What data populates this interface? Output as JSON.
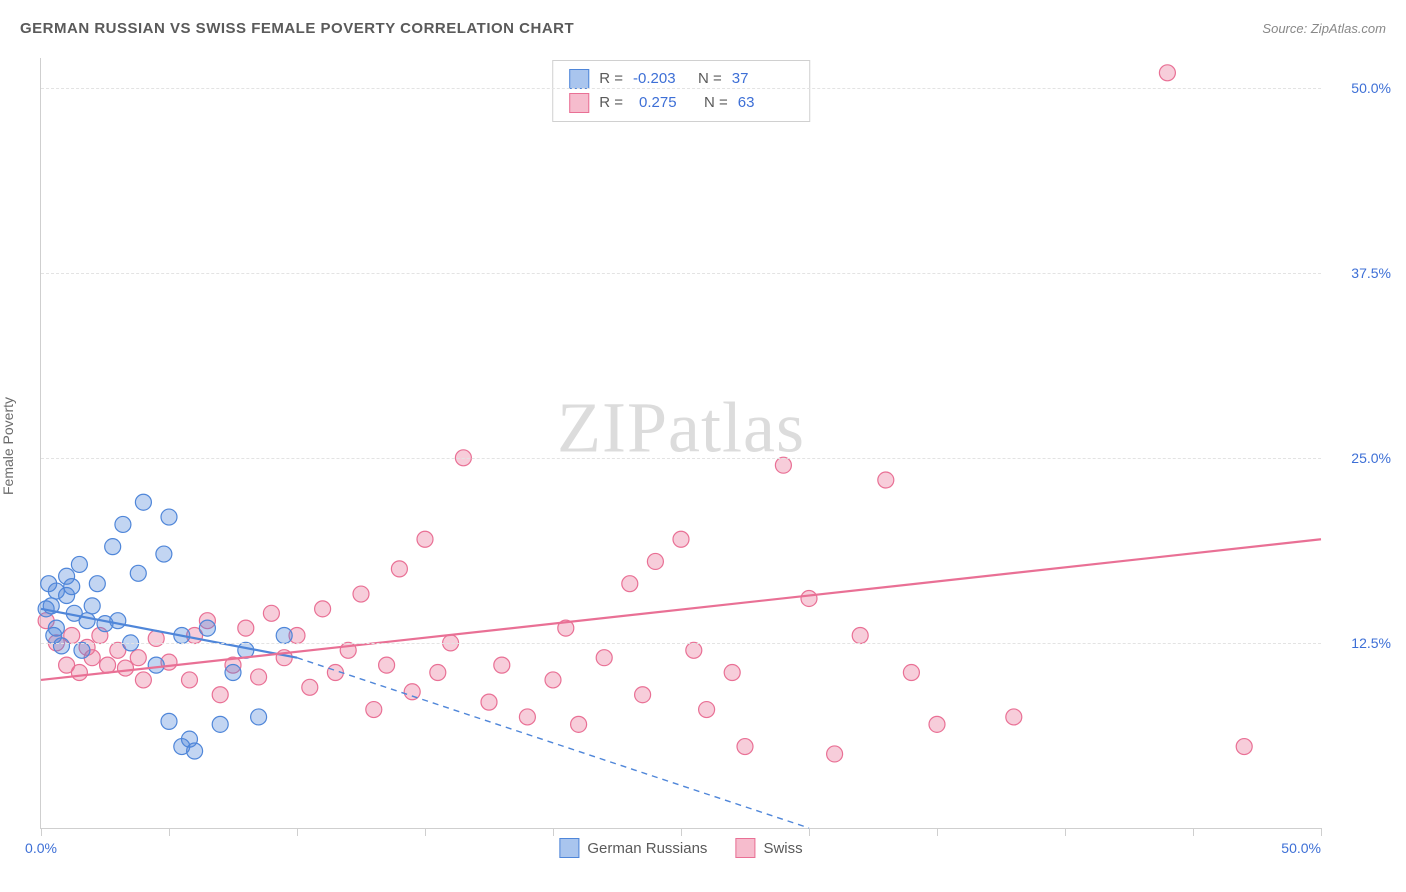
{
  "header": {
    "title": "GERMAN RUSSIAN VS SWISS FEMALE POVERTY CORRELATION CHART",
    "source_label": "Source:",
    "source_name": "ZipAtlas.com"
  },
  "watermark": {
    "zip": "ZIP",
    "atlas": "atlas"
  },
  "chart": {
    "type": "scatter",
    "ylabel": "Female Poverty",
    "xlim": [
      0,
      50
    ],
    "ylim": [
      0,
      52
    ],
    "xticks": [
      0,
      5,
      10,
      15,
      20,
      25,
      30,
      35,
      40,
      45,
      50
    ],
    "xtick_labels": {
      "0": "0.0%",
      "50": "50.0%"
    },
    "yticks": [
      12.5,
      25.0,
      37.5,
      50.0
    ],
    "ytick_labels": [
      "12.5%",
      "25.0%",
      "37.5%",
      "50.0%"
    ],
    "grid_color": "#e3e3e3",
    "axis_color": "#cfcfcf",
    "background_color": "#ffffff",
    "tick_label_color": "#3d6fd6",
    "marker_radius": 8,
    "marker_fill_opacity": 0.35,
    "marker_stroke_width": 1.2,
    "line_width": 2.2,
    "series": [
      {
        "name": "German Russians",
        "color": "#4f86d9",
        "fill": "#a9c5ee",
        "R": "-0.203",
        "N": "37",
        "points": [
          [
            0.2,
            14.8
          ],
          [
            0.3,
            16.5
          ],
          [
            0.4,
            15.0
          ],
          [
            0.5,
            13.0
          ],
          [
            0.6,
            16.0
          ],
          [
            0.6,
            13.5
          ],
          [
            0.8,
            12.3
          ],
          [
            1.0,
            15.7
          ],
          [
            1.0,
            17.0
          ],
          [
            1.2,
            16.3
          ],
          [
            1.3,
            14.5
          ],
          [
            1.5,
            17.8
          ],
          [
            1.6,
            12.0
          ],
          [
            1.8,
            14.0
          ],
          [
            2.0,
            15.0
          ],
          [
            2.2,
            16.5
          ],
          [
            2.5,
            13.8
          ],
          [
            2.8,
            19.0
          ],
          [
            3.0,
            14.0
          ],
          [
            3.2,
            20.5
          ],
          [
            3.5,
            12.5
          ],
          [
            3.8,
            17.2
          ],
          [
            4.0,
            22.0
          ],
          [
            4.5,
            11.0
          ],
          [
            4.8,
            18.5
          ],
          [
            5.0,
            21.0
          ],
          [
            5.5,
            13.0
          ],
          [
            5.8,
            6.0
          ],
          [
            6.0,
            5.2
          ],
          [
            5.0,
            7.2
          ],
          [
            5.5,
            5.5
          ],
          [
            6.5,
            13.5
          ],
          [
            7.0,
            7.0
          ],
          [
            7.5,
            10.5
          ],
          [
            8.0,
            12.0
          ],
          [
            8.5,
            7.5
          ],
          [
            9.5,
            13.0
          ]
        ],
        "trend": {
          "x1": 0,
          "y1": 14.8,
          "x2": 10,
          "y2": 11.5,
          "dash_from_x": 10,
          "x3": 30,
          "y3": 0
        }
      },
      {
        "name": "Swiss",
        "color": "#e97095",
        "fill": "#f6bccd",
        "R": "0.275",
        "N": "63",
        "points": [
          [
            0.2,
            14.0
          ],
          [
            0.6,
            12.5
          ],
          [
            1.0,
            11.0
          ],
          [
            1.2,
            13.0
          ],
          [
            1.5,
            10.5
          ],
          [
            1.8,
            12.2
          ],
          [
            2.0,
            11.5
          ],
          [
            2.3,
            13.0
          ],
          [
            2.6,
            11.0
          ],
          [
            3.0,
            12.0
          ],
          [
            3.3,
            10.8
          ],
          [
            3.8,
            11.5
          ],
          [
            4.0,
            10.0
          ],
          [
            4.5,
            12.8
          ],
          [
            5.0,
            11.2
          ],
          [
            5.8,
            10.0
          ],
          [
            6.0,
            13.0
          ],
          [
            6.5,
            14.0
          ],
          [
            7.0,
            9.0
          ],
          [
            7.5,
            11.0
          ],
          [
            8.0,
            13.5
          ],
          [
            8.5,
            10.2
          ],
          [
            9.0,
            14.5
          ],
          [
            9.5,
            11.5
          ],
          [
            10.0,
            13.0
          ],
          [
            10.5,
            9.5
          ],
          [
            11.0,
            14.8
          ],
          [
            11.5,
            10.5
          ],
          [
            12.0,
            12.0
          ],
          [
            12.5,
            15.8
          ],
          [
            13.0,
            8.0
          ],
          [
            13.5,
            11.0
          ],
          [
            14.0,
            17.5
          ],
          [
            14.5,
            9.2
          ],
          [
            15.0,
            19.5
          ],
          [
            15.5,
            10.5
          ],
          [
            16.0,
            12.5
          ],
          [
            16.5,
            25.0
          ],
          [
            17.5,
            8.5
          ],
          [
            18.0,
            11.0
          ],
          [
            19.0,
            7.5
          ],
          [
            20.0,
            10.0
          ],
          [
            20.5,
            13.5
          ],
          [
            21.0,
            7.0
          ],
          [
            22.0,
            11.5
          ],
          [
            23.0,
            16.5
          ],
          [
            23.5,
            9.0
          ],
          [
            24.0,
            18.0
          ],
          [
            25.0,
            19.5
          ],
          [
            25.5,
            12.0
          ],
          [
            26.0,
            8.0
          ],
          [
            27.0,
            10.5
          ],
          [
            27.5,
            5.5
          ],
          [
            29.0,
            24.5
          ],
          [
            30.0,
            15.5
          ],
          [
            31.0,
            5.0
          ],
          [
            32.0,
            13.0
          ],
          [
            33.0,
            23.5
          ],
          [
            34.0,
            10.5
          ],
          [
            35.0,
            7.0
          ],
          [
            38.0,
            7.5
          ],
          [
            44.0,
            51.0
          ],
          [
            47.0,
            5.5
          ]
        ],
        "trend": {
          "x1": 0,
          "y1": 10.0,
          "x2": 50,
          "y2": 19.5
        }
      }
    ],
    "stats_legend": {
      "r_label": "R =",
      "n_label": "N ="
    },
    "bottom_legend_labels": [
      "German Russians",
      "Swiss"
    ]
  }
}
